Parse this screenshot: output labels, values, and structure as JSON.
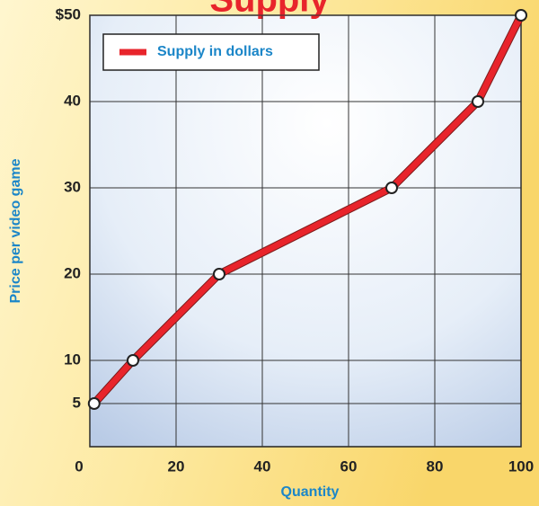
{
  "chart_data": {
    "type": "line",
    "title": "Supply",
    "x_label": "Quantity",
    "y_label": "Price per video game",
    "series": [
      {
        "name": "Supply in dollars",
        "color": "#e8242b",
        "x": [
          1,
          10,
          30,
          70,
          90,
          100
        ],
        "values": [
          5,
          10,
          20,
          30,
          40,
          50
        ]
      }
    ],
    "xlim": [
      0,
      100
    ],
    "xticks": [
      0,
      20,
      40,
      60,
      80,
      100
    ],
    "ylim": [
      0,
      50
    ],
    "yticks": [
      5,
      10,
      20,
      30,
      40,
      {
        "value": 50,
        "label": "$50"
      }
    ],
    "grid": true,
    "legend": "upper left"
  }
}
